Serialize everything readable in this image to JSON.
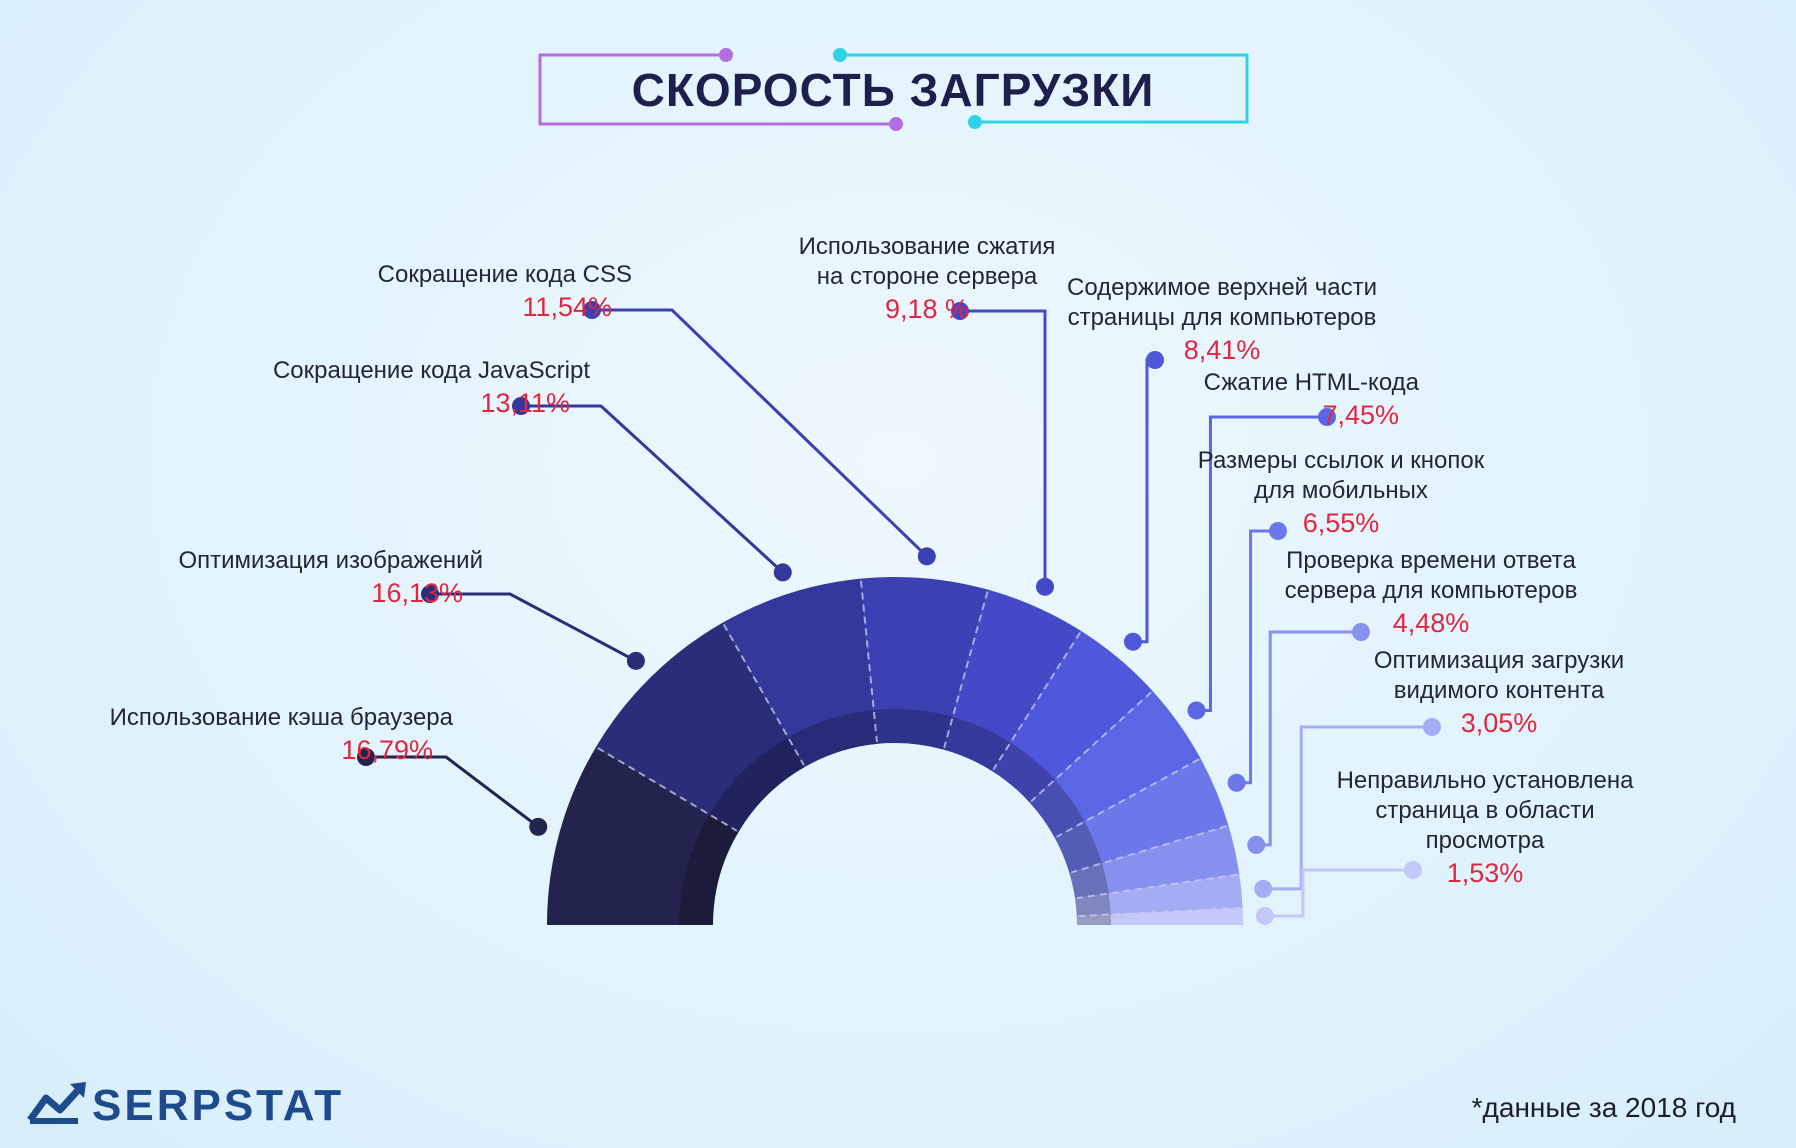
{
  "title": "СКОРОСТЬ ЗАГРУЗКИ",
  "footnote": "*данные за 2018 год",
  "brand": {
    "name": "SERPSTAT",
    "color": "#1e4b8c",
    "icon": "serpstat-chart-logo-icon"
  },
  "colors": {
    "value_text": "#e3263f",
    "title_frame_left": "#b26ee0",
    "title_frame_right": "#2fd3e6"
  },
  "chart_data": {
    "type": "pie",
    "shape": "half-donut",
    "title": "СКОРОСТЬ ЗАГРУЗКИ",
    "unit": "%",
    "slices": [
      {
        "lines": [
          "Использование кэша браузера"
        ],
        "value": 16.79,
        "display": "16,79%",
        "color": "#23244d"
      },
      {
        "lines": [
          "Оптимизация изображений"
        ],
        "value": 16.13,
        "display": "16,13%",
        "color": "#2a2d78"
      },
      {
        "lines": [
          "Сокращение кода JavaScript"
        ],
        "value": 13.11,
        "display": "13,11%",
        "color": "#33389a"
      },
      {
        "lines": [
          "Сокращение кода CSS"
        ],
        "value": 11.54,
        "display": "11,54%",
        "color": "#3b40b2"
      },
      {
        "lines": [
          "Использование сжатия",
          "на стороне сервера"
        ],
        "value": 9.18,
        "display": "9,18 %",
        "color": "#4449c8"
      },
      {
        "lines": [
          "Содержимое верхней части",
          "страницы для компьютеров"
        ],
        "value": 8.41,
        "display": "8,41%",
        "color": "#4f57da"
      },
      {
        "lines": [
          "Сжатие HTML-кода"
        ],
        "value": 7.45,
        "display": "7,45%",
        "color": "#5b66e4"
      },
      {
        "lines": [
          "Размеры ссылок и кнопок",
          "для мобильных"
        ],
        "value": 6.55,
        "display": "6,55%",
        "color": "#6c78ea"
      },
      {
        "lines": [
          "Проверка времени ответа",
          "сервера для компьютеров"
        ],
        "value": 4.48,
        "display": "4,48%",
        "color": "#8690ef"
      },
      {
        "lines": [
          "Оптимизация загрузки",
          "видимого контента"
        ],
        "value": 3.05,
        "display": "3,05%",
        "color": "#a4acf4"
      },
      {
        "lines": [
          "Неправильно установлена",
          "страница в области",
          "просмотра"
        ],
        "value": 1.53,
        "display": "1,53%",
        "color": "#c3c8f8"
      }
    ]
  }
}
